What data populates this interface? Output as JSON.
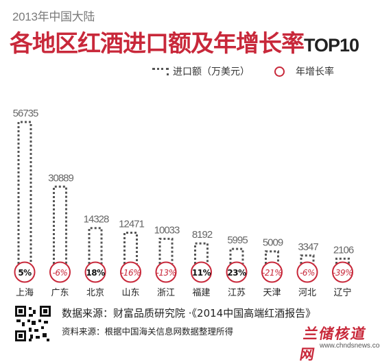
{
  "header": {
    "subtitle": "2013年中国大陆",
    "title": "各地区红酒进口额及年增长率",
    "title_tag": "TOP10"
  },
  "legend": {
    "import_label": "进口额（万美元）",
    "growth_label": "年增长率"
  },
  "colors": {
    "accent": "#c8283a",
    "bar_stroke": "#555555",
    "text": "#333333"
  },
  "chart_data": {
    "type": "bar",
    "title": "各地区红酒进口额及年增长率TOP10",
    "categories": [
      "上海",
      "广东",
      "北京",
      "山东",
      "浙江",
      "福建",
      "江苏",
      "天津",
      "河北",
      "辽宁"
    ],
    "series": [
      {
        "name": "进口额（万美元）",
        "values": [
          56735,
          30889,
          14328,
          12471,
          10033,
          8192,
          5995,
          5009,
          3347,
          2106
        ]
      },
      {
        "name": "年增长率",
        "values": [
          "5%",
          "-6%",
          "18%",
          "-16%",
          "-13%",
          "11%",
          "23%",
          "-21%",
          "-6%",
          "-39%"
        ]
      }
    ],
    "ylim": [
      0,
      56735
    ],
    "grid": false
  },
  "footer": {
    "source_main": "数据来源：财富品质研究院 ·《2014中国高端红酒报告》",
    "source_sub": "资料来源：根据中国海关信息网数据整理所得",
    "logo_text": "兰储核道网",
    "website": "www.chndsnews.com"
  }
}
